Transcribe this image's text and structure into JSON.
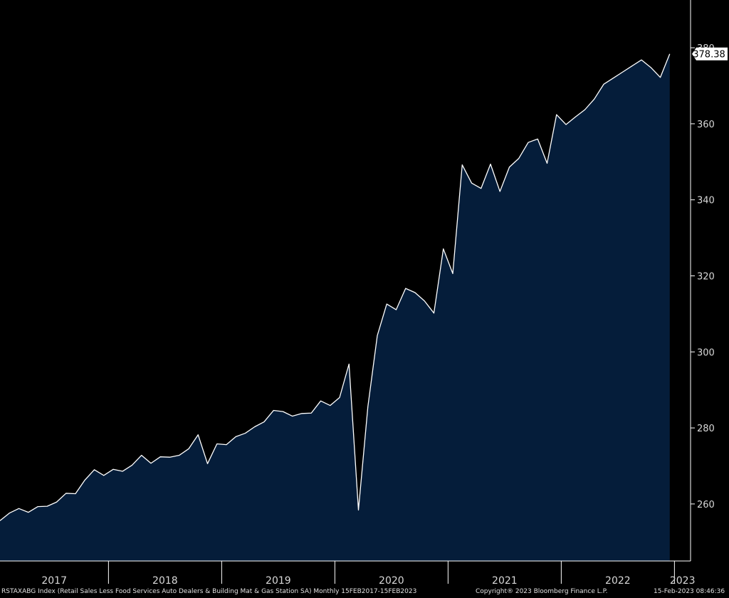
{
  "chart_data": {
    "type": "area",
    "ticker": "RSTAXABG Index",
    "description": "(Retail Sales Less Food Services Auto Dealers & Building Mat & Gas Station SA)",
    "frequency": "Monthly",
    "range": "15FEB2017-15FEB2023",
    "x_start": "2017-01",
    "x_end": "2023-01",
    "year_labels": [
      "2017",
      "2018",
      "2019",
      "2020",
      "2021",
      "2022",
      "2023"
    ],
    "y_ticks": [
      260,
      280,
      300,
      320,
      340,
      360,
      380
    ],
    "ylim": [
      245,
      392
    ],
    "last_value": "378.38",
    "values": [
      255.6,
      257.6,
      258.8,
      257.8,
      259.3,
      259.4,
      260.5,
      262.8,
      262.7,
      266.3,
      269.0,
      267.5,
      269.1,
      268.6,
      270.2,
      272.8,
      270.7,
      272.4,
      272.3,
      272.8,
      274.5,
      278.2,
      270.6,
      275.8,
      275.6,
      277.7,
      278.6,
      280.3,
      281.6,
      284.6,
      284.3,
      283.1,
      283.8,
      283.9,
      287.1,
      285.9,
      288.0,
      296.8,
      258.4,
      285.6,
      304.3,
      312.6,
      311.1,
      316.7,
      315.6,
      313.4,
      310.2,
      327.1,
      320.6,
      349.2,
      344.4,
      343.0,
      349.4,
      342.2,
      348.6,
      350.9,
      355.1,
      356.0,
      349.6,
      362.4,
      359.8,
      361.8,
      363.7,
      366.5,
      370.4,
      372.0,
      373.6,
      375.2,
      376.8,
      374.8,
      372.2,
      378.38
    ],
    "line_color": "#ffffff",
    "fill_color": "#051d3a",
    "background": "#000000",
    "grid": false
  },
  "footer": {
    "left": "RSTAXABG Index (Retail Sales Less Food Services Auto Dealers & Building Mat & Gas Station SA)  Monthly 15FEB2017-15FEB2023",
    "middle": "Copyright® 2023 Bloomberg Finance L.P.",
    "right": "15-Feb-2023 08:46:36"
  }
}
